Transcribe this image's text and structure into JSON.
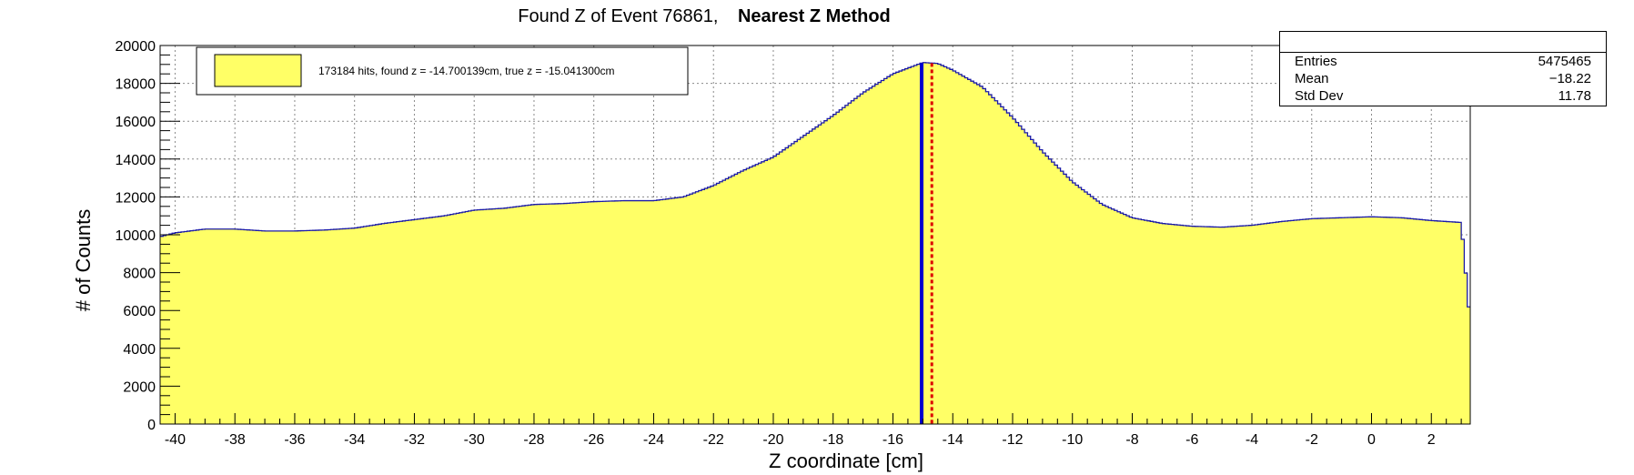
{
  "title_regular": "Found Z of Event 76861,",
  "title_bold": "Nearest Z Method",
  "legend": {
    "entry": "173184 hits, found z = -14.700139cm, true z = -15.041300cm",
    "fill_color": "#ffff66"
  },
  "stats": {
    "rows": [
      {
        "label": "Entries",
        "value": "5475465"
      },
      {
        "label": "Mean",
        "value": "−18.22"
      },
      {
        "label": "Std Dev",
        "value": "11.78"
      }
    ]
  },
  "chart_data": {
    "type": "area",
    "title": "Found Z of Event 76861,   Nearest Z Method",
    "xlabel": "Z coordinate [cm]",
    "ylabel": "# of Counts",
    "xlim": [
      -40.5,
      3.3
    ],
    "ylim": [
      0,
      20000
    ],
    "grid": true,
    "xticks": [
      -40,
      -38,
      -36,
      -34,
      -32,
      -30,
      -28,
      -26,
      -24,
      -22,
      -20,
      -18,
      -16,
      -14,
      -12,
      -10,
      -8,
      -6,
      -4,
      -2,
      0,
      2
    ],
    "yticks": [
      0,
      2000,
      4000,
      6000,
      8000,
      10000,
      12000,
      14000,
      16000,
      18000,
      20000
    ],
    "series": [
      {
        "color": "#ffff66",
        "edge_color": "#1a1aa6",
        "x": [
          -40.5,
          -40,
          -39,
          -38,
          -37,
          -36,
          -35,
          -34,
          -33,
          -32,
          -31,
          -30,
          -29,
          -28,
          -27,
          -26,
          -25,
          -24,
          -23,
          -22,
          -21,
          -20,
          -19,
          -18,
          -17,
          -16,
          -15.5,
          -15,
          -14.5,
          -14,
          -13,
          -12,
          -11,
          -10,
          -9,
          -8,
          -7,
          -6,
          -5,
          -4,
          -3,
          -2,
          -1,
          0,
          1,
          2,
          3.0,
          3.3
        ],
        "y": [
          9900,
          10100,
          10300,
          10300,
          10200,
          10200,
          10250,
          10350,
          10600,
          10800,
          11000,
          11300,
          11400,
          11600,
          11650,
          11750,
          11800,
          11800,
          12000,
          12600,
          13400,
          14100,
          15200,
          16300,
          17500,
          18500,
          18800,
          19100,
          19050,
          18700,
          17800,
          16200,
          14400,
          12800,
          11600,
          10900,
          10600,
          10450,
          10400,
          10500,
          10700,
          10850,
          10900,
          10950,
          10900,
          10750,
          10650,
          5300
        ]
      }
    ],
    "lines": [
      {
        "x": -15.0413,
        "color": "#0000cc",
        "style": "solid"
      },
      {
        "x": -14.700139,
        "color": "#dd0000",
        "style": "dotted"
      }
    ]
  }
}
